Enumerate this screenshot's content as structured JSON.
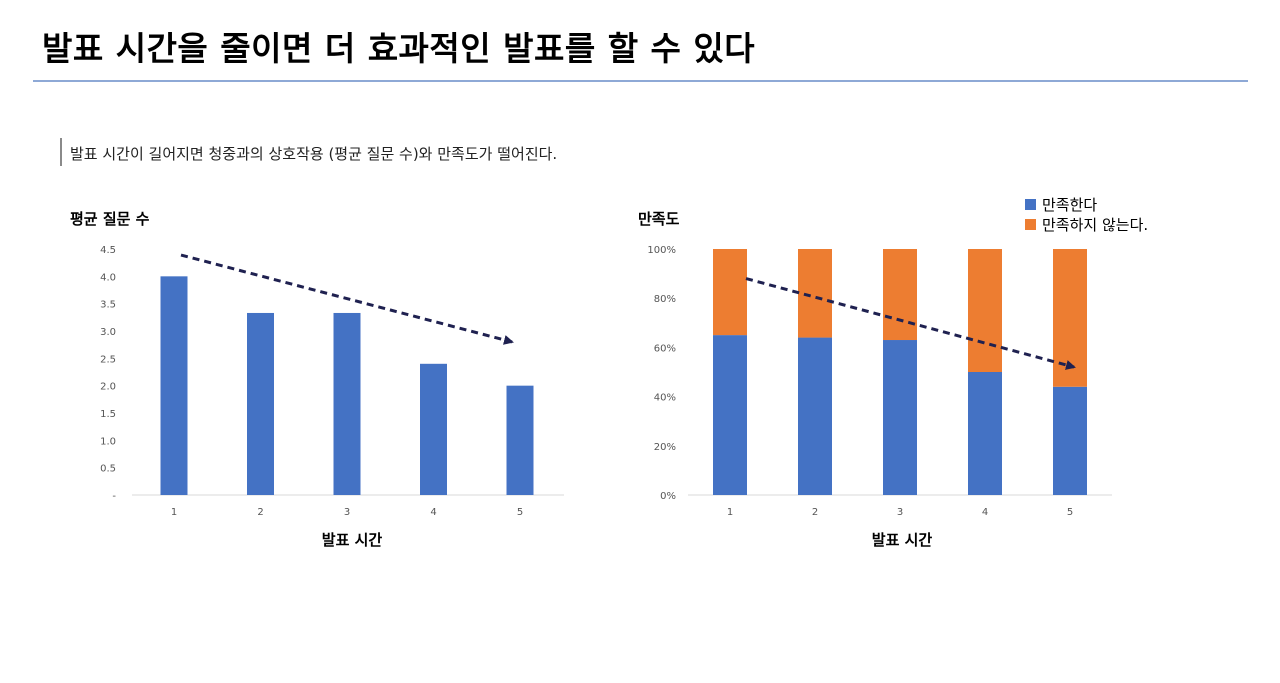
{
  "header": {
    "title": "발표 시간을 줄이면 더 효과적인 발표를 할 수 있다",
    "subtitle": "발표 시간이 길어지면 청중과의 상호작용 (평균 질문 수)와 만족도가 떨어진다."
  },
  "colors": {
    "blue": "#4472c4",
    "orange": "#ed7d31",
    "arrow": "#1f2150",
    "rule": "#8ea9d6"
  },
  "chart_data": [
    {
      "type": "bar",
      "title": "평균 질문 수",
      "xlabel": "발표 시간",
      "categories": [
        "1",
        "2",
        "3",
        "4",
        "5"
      ],
      "values": [
        4.0,
        3.33,
        3.33,
        2.4,
        2.0
      ],
      "ylim": [
        0,
        4.5
      ],
      "yticks": [
        "-",
        "0.5",
        "1.0",
        "1.5",
        "2.0",
        "2.5",
        "3.0",
        "3.5",
        "4.0",
        "4.5"
      ],
      "grid": false,
      "annotation": "dashed downward trend arrow"
    },
    {
      "type": "bar",
      "stacked": true,
      "title": "만족도",
      "xlabel": "발표 시간",
      "categories": [
        "1",
        "2",
        "3",
        "4",
        "5"
      ],
      "series": [
        {
          "name": "만족한다",
          "values": [
            65,
            64,
            63,
            50,
            44
          ]
        },
        {
          "name": "만족하지 않는다.",
          "values": [
            35,
            36,
            37,
            50,
            56
          ]
        }
      ],
      "ylim": [
        0,
        100
      ],
      "yticks": [
        "0%",
        "20%",
        "40%",
        "60%",
        "80%",
        "100%"
      ],
      "legend": "top-right",
      "grid": false,
      "annotation": "dashed downward trend arrow"
    }
  ]
}
